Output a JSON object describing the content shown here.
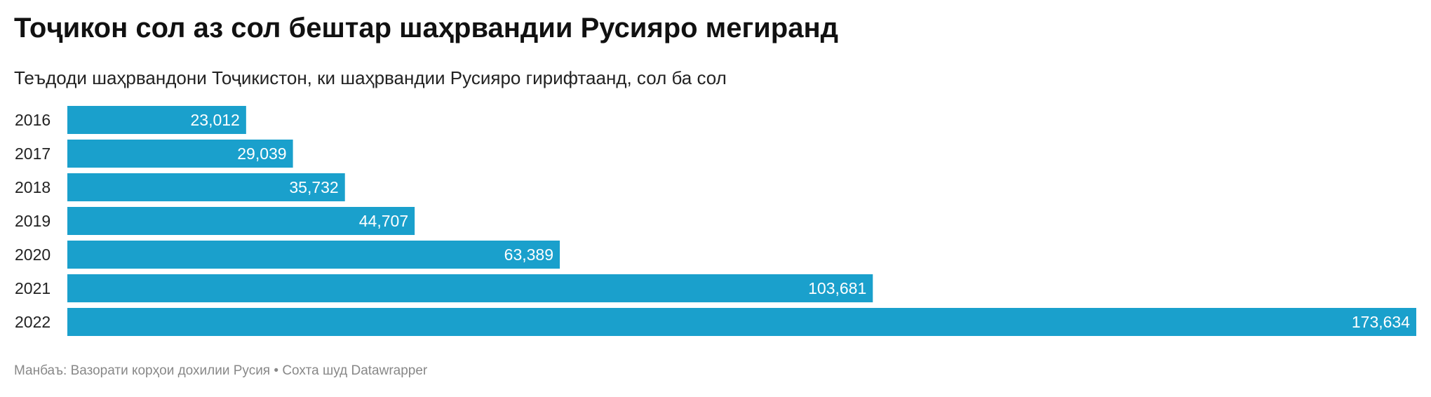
{
  "title": "Тоҷикон сол аз сол бештар шаҳрвандии Русияро мегиранд",
  "subtitle": "Теъдоди шаҳрвандони Тоҷикистон, ки шаҳрвандии Русияро гирифтаанд, сол ба сол",
  "footer": {
    "source_label": "Манбаъ:",
    "source": "Вазорати корҳои дохилии Русия",
    "separator": "•",
    "credit": "Сохта шуд Datawrapper"
  },
  "colors": {
    "bar": "#1aa0cc",
    "bar_label": "#ffffff"
  },
  "chart_data": {
    "type": "bar",
    "orientation": "horizontal",
    "categories": [
      "2016",
      "2017",
      "2018",
      "2019",
      "2020",
      "2021",
      "2022"
    ],
    "values": [
      23012,
      29039,
      35732,
      44707,
      63389,
      103681,
      173634
    ],
    "value_labels": [
      "23,012",
      "29,039",
      "35,732",
      "44,707",
      "63,389",
      "103,681",
      "173,634"
    ],
    "title": "Тоҷикон сол аз сол бештар шаҳрвандии Русияро мегиранд",
    "subtitle": "Теъдоди шаҳрвандони Тоҷикистон, ки шаҳрвандии Русияро гирифтаанд, сол ба сол",
    "xlim": [
      0,
      173634
    ],
    "grid": false,
    "legend": "none"
  }
}
